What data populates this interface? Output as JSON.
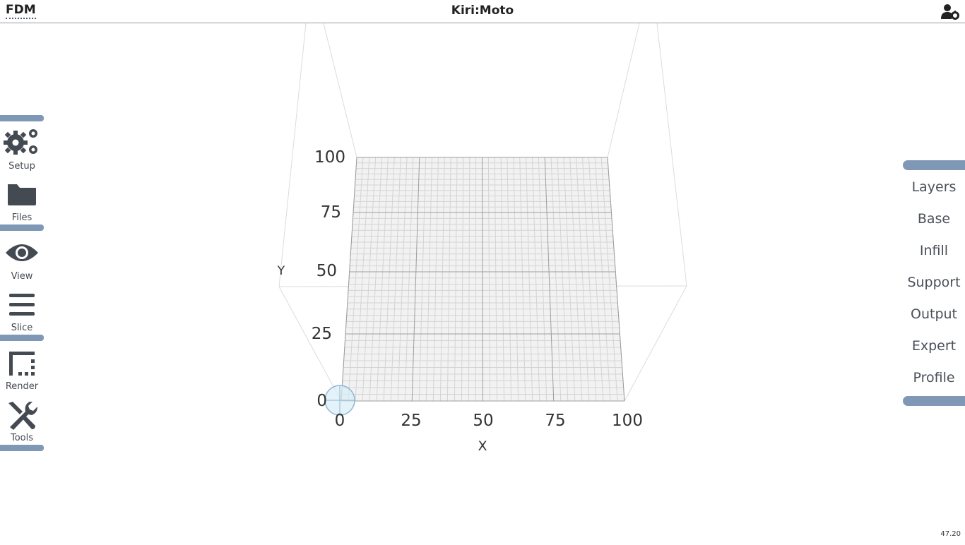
{
  "header": {
    "mode": "FDM",
    "title": "Kiri:Moto"
  },
  "left_toolbar": {
    "items": [
      {
        "label": "Setup",
        "icon": "gears-icon"
      },
      {
        "label": "Files",
        "icon": "folder-icon"
      },
      {
        "label": "View",
        "icon": "eye-icon"
      },
      {
        "label": "Slice",
        "icon": "bars-icon"
      },
      {
        "label": "Render",
        "icon": "border-style-icon"
      },
      {
        "label": "Tools",
        "icon": "tools-icon"
      }
    ]
  },
  "right_tabs": {
    "items": [
      "Layers",
      "Base",
      "Infill",
      "Support",
      "Output",
      "Expert",
      "Profile"
    ]
  },
  "viewport": {
    "x_axis_label": "X",
    "y_axis_label": "Y",
    "x_ticks": [
      "0",
      "25",
      "50",
      "75",
      "100"
    ],
    "y_ticks": [
      "0",
      "25",
      "50",
      "75",
      "100"
    ]
  },
  "version": "47.20",
  "colors": {
    "accent": "#7f98b5",
    "icon": "#444a52",
    "grid": "#cccccc",
    "bed": "#f2f2f2"
  }
}
